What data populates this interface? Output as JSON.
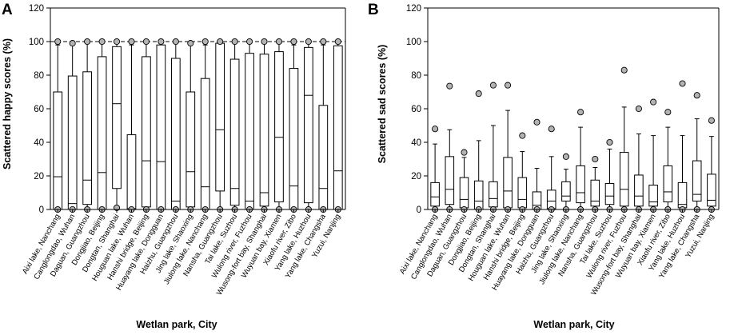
{
  "chart_data": [
    {
      "type": "box",
      "panel_label": "A",
      "title": "",
      "xlabel": "Wetlan park, City",
      "ylabel": "Scattered happy scores (%)",
      "ylim": [
        0,
        120
      ],
      "yticks": [
        0,
        20,
        40,
        60,
        80,
        100,
        120
      ],
      "reference_lines": [
        0,
        100
      ],
      "categories": [
        "Aixi lake, Nanchang",
        "Canglongdao, Wuhan",
        "Daguan, Guangzhou",
        "Dongjiao, Beijing",
        "Dongtan, Shanghai",
        "Houguan lake, Wuhan",
        "Hanshi bridge, Beijing",
        "Huayang lake, Dongguan",
        "Haizhu, Guangzhou",
        "Jing lake, Shaoxing",
        "Jiulong lake, Nanchang",
        "Nansha, Guangzhou",
        "Tai lake, Suzhou",
        "Wulong river, Fuzhou",
        "Wusong-fort bay, Shanghai",
        "Wuyuan bay, Xiamen",
        "Xiaofu river, Zibo",
        "Yang lake, Huzhou",
        "Yang lake, Changsha",
        "Yuzui, Nanjing"
      ],
      "boxes": [
        {
          "whisker_low": 0,
          "q1": 0,
          "median": 19.5,
          "q3": 70,
          "whisker_high": 98,
          "outliers": [
            100,
            0
          ]
        },
        {
          "whisker_low": 0,
          "q1": 0,
          "median": 3.5,
          "q3": 79.5,
          "whisker_high": 98,
          "outliers": [
            99,
            0
          ]
        },
        {
          "whisker_low": 0,
          "q1": 3,
          "median": 17.5,
          "q3": 82,
          "whisker_high": 99,
          "outliers": [
            100,
            0
          ]
        },
        {
          "whisker_low": 0,
          "q1": 0,
          "median": 22,
          "q3": 91,
          "whisker_high": 99,
          "outliers": [
            100,
            0
          ]
        },
        {
          "whisker_low": 0,
          "q1": 12.5,
          "median": 63,
          "q3": 97,
          "whisker_high": 99,
          "outliers": [
            100,
            1
          ]
        },
        {
          "whisker_low": 0,
          "q1": 0,
          "median": 0.5,
          "q3": 44.5,
          "whisker_high": 98,
          "outliers": [
            100,
            0
          ]
        },
        {
          "whisker_low": 0,
          "q1": 1.5,
          "median": 29,
          "q3": 91,
          "whisker_high": 99,
          "outliers": [
            100,
            0
          ]
        },
        {
          "whisker_low": 0,
          "q1": 0,
          "median": 28.5,
          "q3": 98,
          "whisker_high": 99,
          "outliers": [
            100,
            0
          ]
        },
        {
          "whisker_low": 0,
          "q1": 0,
          "median": 5,
          "q3": 90,
          "whisker_high": 99,
          "outliers": [
            100,
            0
          ]
        },
        {
          "whisker_low": 0,
          "q1": 1.5,
          "median": 22.5,
          "q3": 70,
          "whisker_high": 98,
          "outliers": [
            99,
            0
          ]
        },
        {
          "whisker_low": 0,
          "q1": 0,
          "median": 13.5,
          "q3": 78,
          "whisker_high": 98,
          "outliers": [
            100,
            0
          ]
        },
        {
          "whisker_low": 0,
          "q1": 11,
          "median": 47.5,
          "q3": 99,
          "whisker_high": 99,
          "outliers": [
            100,
            0
          ]
        },
        {
          "whisker_low": 0,
          "q1": 2.5,
          "median": 12.5,
          "q3": 89.5,
          "whisker_high": 99,
          "outliers": [
            100,
            0
          ]
        },
        {
          "whisker_low": 0,
          "q1": 0,
          "median": 5,
          "q3": 93,
          "whisker_high": 99,
          "outliers": [
            100,
            0
          ]
        },
        {
          "whisker_low": 0,
          "q1": 2,
          "median": 10,
          "q3": 92.5,
          "whisker_high": 99,
          "outliers": [
            100,
            0
          ]
        },
        {
          "whisker_low": 0,
          "q1": 4.5,
          "median": 43,
          "q3": 94,
          "whisker_high": 99,
          "outliers": [
            100,
            0
          ]
        },
        {
          "whisker_low": 0,
          "q1": 0,
          "median": 14,
          "q3": 84,
          "whisker_high": 98,
          "outliers": [
            100,
            0
          ]
        },
        {
          "whisker_low": 0,
          "q1": 4,
          "median": 68,
          "q3": 96.5,
          "whisker_high": 99,
          "outliers": [
            100,
            0
          ]
        },
        {
          "whisker_low": 0,
          "q1": 0,
          "median": 12.5,
          "q3": 62,
          "whisker_high": 98,
          "outliers": [
            100,
            0
          ]
        },
        {
          "whisker_low": 0,
          "q1": 0,
          "median": 23,
          "q3": 97.5,
          "whisker_high": 99,
          "outliers": [
            100,
            0
          ]
        }
      ]
    },
    {
      "type": "box",
      "panel_label": "B",
      "title": "",
      "xlabel": "Wetlan park, City",
      "ylabel": "Scattered sad scores (%)",
      "ylim": [
        0,
        120
      ],
      "yticks": [
        0,
        20,
        40,
        60,
        80,
        100,
        120
      ],
      "reference_lines": [
        0
      ],
      "categories": [
        "Aixi lake, Nanchang",
        "Canglongdao, Wuhan",
        "Daguan, Guangzhou",
        "Dongjiao, Beijing",
        "Dongtan, Shanghai",
        "Houguan lake, Wuhan",
        "Hanshi bridge, Beijing",
        "Huayang lake, Dongguan",
        "Haizhu, Guangzhou",
        "Jing lake, Shaoxing",
        "Jiulong lake, Nanchang",
        "Nansha, Guangzhou",
        "Tai lake, Suzhou",
        "Wulong river, Fuzhou",
        "Wusong-fort bay, Shanghai",
        "Wuyuan bay, Xiamen",
        "Xiaofu river, Zibo",
        "Yang lake, Huzhou",
        "Yang lake, Changsha",
        "Yuzui, Nanjing"
      ],
      "boxes": [
        {
          "whisker_low": 0,
          "q1": 2,
          "median": 7.5,
          "q3": 16,
          "whisker_high": 39,
          "outliers": [
            48,
            0
          ]
        },
        {
          "whisker_low": 0,
          "q1": 3,
          "median": 12,
          "q3": 31.5,
          "whisker_high": 47.5,
          "outliers": [
            73.5,
            0
          ]
        },
        {
          "whisker_low": 0,
          "q1": 1,
          "median": 6,
          "q3": 19,
          "whisker_high": 31,
          "outliers": [
            34,
            0
          ]
        },
        {
          "whisker_low": 0,
          "q1": 0,
          "median": 5,
          "q3": 17,
          "whisker_high": 41,
          "outliers": [
            69,
            0
          ]
        },
        {
          "whisker_low": 0,
          "q1": 1.5,
          "median": 6.5,
          "q3": 16.5,
          "whisker_high": 50,
          "outliers": [
            74,
            0
          ]
        },
        {
          "whisker_low": 0,
          "q1": 1,
          "median": 11,
          "q3": 31,
          "whisker_high": 59,
          "outliers": [
            74,
            0
          ]
        },
        {
          "whisker_low": 0,
          "q1": 1,
          "median": 6,
          "q3": 19,
          "whisker_high": 34.5,
          "outliers": [
            44,
            0
          ]
        },
        {
          "whisker_low": 0,
          "q1": 0,
          "median": 2.5,
          "q3": 10.5,
          "whisker_high": 24.5,
          "outliers": [
            52,
            0
          ]
        },
        {
          "whisker_low": 0,
          "q1": 0.5,
          "median": 5,
          "q3": 11.5,
          "whisker_high": 31.5,
          "outliers": [
            48,
            0
          ]
        },
        {
          "whisker_low": 0,
          "q1": 5,
          "median": 8,
          "q3": 16.5,
          "whisker_high": 24,
          "outliers": [
            31.5,
            0
          ]
        },
        {
          "whisker_low": 0,
          "q1": 4,
          "median": 10,
          "q3": 26,
          "whisker_high": 49,
          "outliers": [
            58,
            0
          ]
        },
        {
          "whisker_low": 0,
          "q1": 2,
          "median": 5,
          "q3": 17.5,
          "whisker_high": 25,
          "outliers": [
            30,
            0
          ]
        },
        {
          "whisker_low": 0,
          "q1": 3,
          "median": 8,
          "q3": 15.5,
          "whisker_high": 36,
          "outliers": [
            40,
            0
          ]
        },
        {
          "whisker_low": 0,
          "q1": 2,
          "median": 12,
          "q3": 34,
          "whisker_high": 61,
          "outliers": [
            83,
            0
          ]
        },
        {
          "whisker_low": 0,
          "q1": 2,
          "median": 8,
          "q3": 20.5,
          "whisker_high": 45,
          "outliers": [
            60,
            0
          ]
        },
        {
          "whisker_low": 0,
          "q1": 2,
          "median": 4.5,
          "q3": 14.5,
          "whisker_high": 44,
          "outliers": [
            64,
            0
          ]
        },
        {
          "whisker_low": 0,
          "q1": 4.5,
          "median": 10.5,
          "q3": 26,
          "whisker_high": 49,
          "outliers": [
            58,
            0
          ]
        },
        {
          "whisker_low": 0,
          "q1": 1,
          "median": 3,
          "q3": 16,
          "whisker_high": 44,
          "outliers": [
            75,
            0
          ]
        },
        {
          "whisker_low": 0,
          "q1": 5,
          "median": 9,
          "q3": 29,
          "whisker_high": 54,
          "outliers": [
            68,
            0
          ]
        },
        {
          "whisker_low": 0,
          "q1": 2,
          "median": 5.5,
          "q3": 21,
          "whisker_high": 43.5,
          "outliers": [
            53,
            0
          ]
        }
      ]
    }
  ]
}
